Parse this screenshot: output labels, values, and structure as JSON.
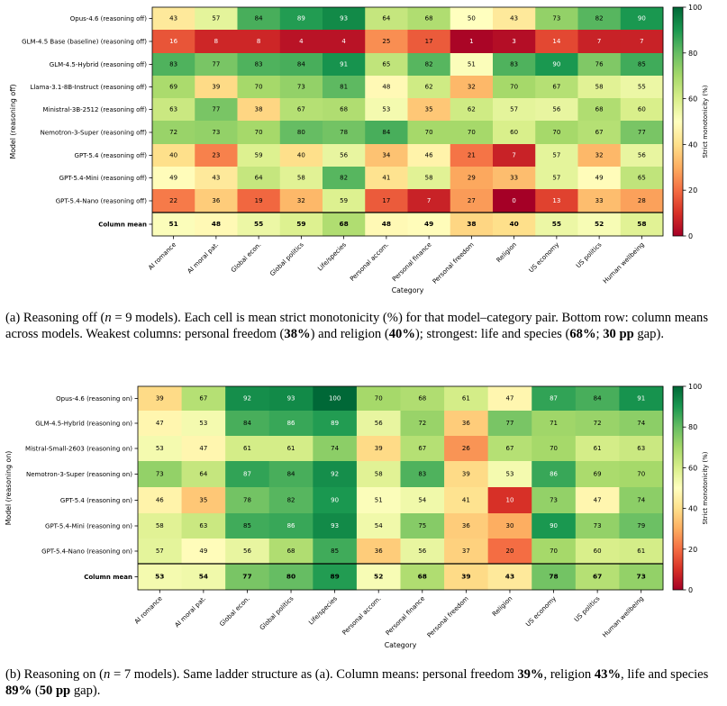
{
  "chart_data": [
    {
      "type": "heatmap",
      "title": "",
      "xlabel": "Category",
      "ylabel": "Model (reasoning off)",
      "colorbar_label": "Strict monotonicity (%)",
      "colorbar_ticks": [
        "0",
        "20",
        "40",
        "60",
        "80",
        "100"
      ],
      "value_range": [
        0,
        100
      ],
      "colormap": "RdYlGn",
      "categories": [
        "AI romance",
        "AI moral pat.",
        "Global econ.",
        "Global politics",
        "Life/species",
        "Personal accom.",
        "Personal finance",
        "Personal freedom",
        "Religion",
        "US economy",
        "US politics",
        "Human wellbeing"
      ],
      "rows": [
        {
          "label": "Opus-4.6 (reasoning off)",
          "values": [
            43,
            57,
            84,
            89,
            93,
            64,
            68,
            50,
            43,
            73,
            82,
            90
          ]
        },
        {
          "label": "GLM-4.5 Base (baseline) (reasoning off)",
          "values": [
            16,
            8,
            8,
            4,
            4,
            25,
            17,
            1,
            3,
            14,
            7,
            7
          ]
        },
        {
          "label": "GLM-4.5-Hybrid (reasoning off)",
          "values": [
            83,
            77,
            83,
            84,
            91,
            65,
            82,
            51,
            83,
            90,
            76,
            85
          ]
        },
        {
          "label": "Llama-3.1-8B-Instruct (reasoning off)",
          "values": [
            69,
            39,
            70,
            73,
            81,
            48,
            62,
            32,
            70,
            67,
            58,
            55
          ]
        },
        {
          "label": "Ministral-3B-2512 (reasoning off)",
          "values": [
            63,
            77,
            38,
            67,
            68,
            53,
            35,
            62,
            57,
            56,
            68,
            60
          ]
        },
        {
          "label": "Nemotron-3-Super (reasoning off)",
          "values": [
            72,
            73,
            70,
            80,
            78,
            84,
            70,
            70,
            60,
            70,
            67,
            77
          ]
        },
        {
          "label": "GPT-5.4 (reasoning off)",
          "values": [
            40,
            23,
            59,
            40,
            56,
            34,
            46,
            21,
            7,
            57,
            32,
            56
          ]
        },
        {
          "label": "GPT-5.4-Mini (reasoning off)",
          "values": [
            49,
            43,
            64,
            58,
            82,
            41,
            58,
            29,
            33,
            57,
            49,
            65
          ]
        },
        {
          "label": "GPT-5.4-Nano (reasoning off)",
          "values": [
            22,
            36,
            19,
            32,
            59,
            17,
            7,
            27,
            0,
            13,
            33,
            28
          ]
        }
      ],
      "mean_row": {
        "label": "Column mean",
        "values": [
          51,
          48,
          55,
          59,
          68,
          48,
          49,
          38,
          40,
          55,
          52,
          58
        ]
      }
    },
    {
      "type": "heatmap",
      "title": "",
      "xlabel": "Category",
      "ylabel": "Model (reasoning on)",
      "colorbar_label": "Strict monotonicity (%)",
      "colorbar_ticks": [
        "0",
        "20",
        "40",
        "60",
        "80",
        "100"
      ],
      "value_range": [
        0,
        100
      ],
      "colormap": "RdYlGn",
      "categories": [
        "AI romance",
        "AI moral pat.",
        "Global econ.",
        "Global politics",
        "Life/species",
        "Personal accom.",
        "Personal finance",
        "Personal freedom",
        "Religion",
        "US economy",
        "US politics",
        "Human wellbeing"
      ],
      "rows": [
        {
          "label": "Opus-4.6 (reasoning on)",
          "values": [
            39,
            67,
            92,
            93,
            100,
            70,
            68,
            61,
            47,
            87,
            84,
            91
          ]
        },
        {
          "label": "GLM-4.5-Hybrid (reasoning on)",
          "values": [
            47,
            53,
            84,
            86,
            89,
            56,
            72,
            36,
            77,
            71,
            72,
            74
          ]
        },
        {
          "label": "Mistral-Small-2603 (reasoning on)",
          "values": [
            53,
            47,
            61,
            61,
            74,
            39,
            67,
            26,
            67,
            70,
            61,
            63
          ]
        },
        {
          "label": "Nemotron-3-Super (reasoning on)",
          "values": [
            73,
            64,
            87,
            84,
            92,
            58,
            83,
            39,
            53,
            86,
            69,
            70
          ]
        },
        {
          "label": "GPT-5.4 (reasoning on)",
          "values": [
            46,
            35,
            78,
            82,
            90,
            51,
            54,
            41,
            10,
            73,
            47,
            74
          ]
        },
        {
          "label": "GPT-5.4-Mini (reasoning on)",
          "values": [
            58,
            63,
            85,
            86,
            93,
            54,
            75,
            36,
            30,
            90,
            73,
            79
          ]
        },
        {
          "label": "GPT-5.4-Nano (reasoning on)",
          "values": [
            57,
            49,
            56,
            68,
            85,
            36,
            56,
            37,
            20,
            70,
            60,
            61
          ]
        }
      ],
      "mean_row": {
        "label": "Column mean",
        "values": [
          53,
          54,
          77,
          80,
          89,
          52,
          68,
          39,
          43,
          78,
          67,
          73
        ]
      }
    }
  ],
  "captions": {
    "a": {
      "p1": "(a) Reasoning off (",
      "n": "n",
      "p2": " = 9 models). Each cell is mean strict monotonicity (%) for that model–category pair. Bottom row: column means across models. Weakest columns: personal freedom (",
      "b1": "38%",
      "p3": ") and religion (",
      "b2": "40%",
      "p4": "); strongest: life and species (",
      "b3": "68%",
      "p5": "; ",
      "b4": "30 pp",
      "p6": " gap)."
    },
    "b": {
      "p1": "(b) Reasoning on (",
      "n": "n",
      "p2": " = 7 models). Same ladder structure as (a). Column means: personal freedom ",
      "b1": "39%",
      "p3": ", religion ",
      "b2": "43%",
      "p4": ", life and species ",
      "b3": "89%",
      "p5": " (",
      "b4": "50 pp",
      "p6": " gap)."
    }
  }
}
